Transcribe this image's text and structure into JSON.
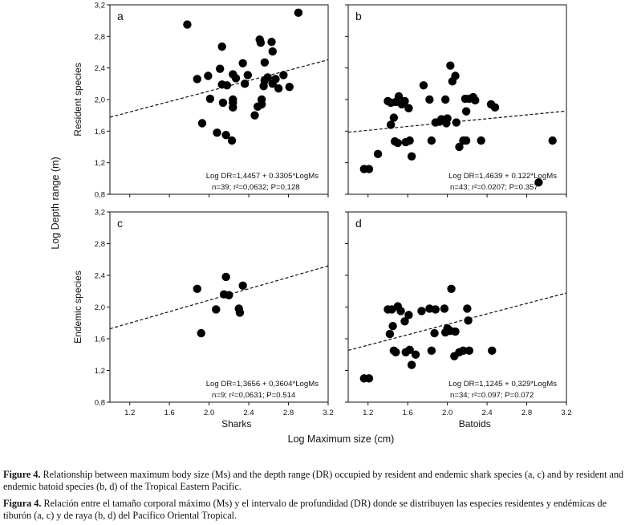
{
  "figure": {
    "y_axis_title": "Log Depth range (m)",
    "x_axis_title": "Log Maximum size (cm)",
    "row_labels": [
      "Resident species",
      "Endemic species"
    ],
    "column_labels": [
      "Sharks",
      "Batoids"
    ]
  },
  "caption_en": {
    "bold": "Figure 4.",
    "text": " Relationship between maximum body size (Ms) and the depth range (DR) occupied by resident and endemic shark species (a, c) and by resident and endemic batoid species (b, d) of the Tropical Eastern Pacific."
  },
  "caption_es": {
    "bold": "Figura 4.",
    "text": " Relación entre el tamaño corporal máximo (Ms) y el intervalo de profundidad (DR) donde se distribuyen las especies residentes y endémicas de tiburón (a, c) y de raya (b, d) del Pacífico Oriental Tropical."
  },
  "chart_data": [
    {
      "type": "scatter",
      "panel": "a",
      "ylabel": "Resident species",
      "xlim": [
        1.0,
        3.2
      ],
      "ylim": [
        0.8,
        3.2
      ],
      "xticks": [
        "1.2",
        "1.6",
        "2.0",
        "2.4",
        "2.8",
        "3.2"
      ],
      "yticks": [
        "0,8",
        "1,2",
        "1,6",
        "2,0",
        "2,4",
        "2,8",
        "3,2"
      ],
      "show_xticks": false,
      "show_yticks": true,
      "regression": {
        "intercept": 1.4457,
        "slope": 0.3305
      },
      "equation": "Log DR=1,4457 + 0.3305*LogMs",
      "stats": "n=39; r²=0,0632; P=0,128",
      "points": [
        [
          1.78,
          2.95
        ],
        [
          1.88,
          2.26
        ],
        [
          1.93,
          1.7
        ],
        [
          1.99,
          2.3
        ],
        [
          2.01,
          2.01
        ],
        [
          2.08,
          1.58
        ],
        [
          2.11,
          2.39
        ],
        [
          2.13,
          2.19
        ],
        [
          2.14,
          1.96
        ],
        [
          2.17,
          1.55
        ],
        [
          2.13,
          2.67
        ],
        [
          2.18,
          2.18
        ],
        [
          2.23,
          1.48
        ],
        [
          2.24,
          2.32
        ],
        [
          2.24,
          2.0
        ],
        [
          2.24,
          1.96
        ],
        [
          2.24,
          1.9
        ],
        [
          2.27,
          2.27
        ],
        [
          2.34,
          2.46
        ],
        [
          2.36,
          2.2
        ],
        [
          2.39,
          2.31
        ],
        [
          2.46,
          1.8
        ],
        [
          2.49,
          1.91
        ],
        [
          2.53,
          2.0
        ],
        [
          2.55,
          2.17
        ],
        [
          2.56,
          2.47
        ],
        [
          2.56,
          2.24
        ],
        [
          2.59,
          2.28
        ],
        [
          2.64,
          2.2
        ],
        [
          2.64,
          2.61
        ],
        [
          2.67,
          2.26
        ],
        [
          2.7,
          2.14
        ],
        [
          2.75,
          2.31
        ],
        [
          2.81,
          2.16
        ],
        [
          2.9,
          3.1
        ],
        [
          2.51,
          2.76
        ],
        [
          2.52,
          2.72
        ],
        [
          2.63,
          2.73
        ],
        [
          2.53,
          1.94
        ]
      ]
    },
    {
      "type": "scatter",
      "panel": "b",
      "xlim": [
        1.0,
        3.2
      ],
      "ylim": [
        0.8,
        3.2
      ],
      "show_xticks": false,
      "show_yticks": false,
      "regression": {
        "intercept": 1.4639,
        "slope": 0.122
      },
      "equation": "Log DR=1,4639 + 0.122*LogMs",
      "stats": "n=43; r²=0.0207; P=0.357",
      "points": [
        [
          1.16,
          1.12
        ],
        [
          1.21,
          1.12
        ],
        [
          1.3,
          1.31
        ],
        [
          1.4,
          1.98
        ],
        [
          1.43,
          1.68
        ],
        [
          1.43,
          1.96
        ],
        [
          1.46,
          1.77
        ],
        [
          1.47,
          1.47
        ],
        [
          1.5,
          1.45
        ],
        [
          1.51,
          2.04
        ],
        [
          1.54,
          1.94
        ],
        [
          1.57,
          1.98
        ],
        [
          1.58,
          1.46
        ],
        [
          1.61,
          1.89
        ],
        [
          1.62,
          1.48
        ],
        [
          1.64,
          1.28
        ],
        [
          1.76,
          2.18
        ],
        [
          1.82,
          2.0
        ],
        [
          1.84,
          1.48
        ],
        [
          1.88,
          1.71
        ],
        [
          1.92,
          1.72
        ],
        [
          1.94,
          1.75
        ],
        [
          1.98,
          2.0
        ],
        [
          2.0,
          1.76
        ],
        [
          2.03,
          2.43
        ],
        [
          2.05,
          2.23
        ],
        [
          2.08,
          2.3
        ],
        [
          2.09,
          1.71
        ],
        [
          2.12,
          1.4
        ],
        [
          2.16,
          1.48
        ],
        [
          2.18,
          2.01
        ],
        [
          2.19,
          1.85
        ],
        [
          2.19,
          1.48
        ],
        [
          2.22,
          2.01
        ],
        [
          2.26,
          2.03
        ],
        [
          2.28,
          1.99
        ],
        [
          2.34,
          1.48
        ],
        [
          2.44,
          1.94
        ],
        [
          2.48,
          1.9
        ],
        [
          2.92,
          0.95
        ],
        [
          3.06,
          1.48
        ],
        [
          1.48,
          1.97
        ],
        [
          1.99,
          1.7
        ]
      ]
    },
    {
      "type": "scatter",
      "panel": "c",
      "ylabel": "Endemic species",
      "xlim": [
        1.0,
        3.2
      ],
      "ylim": [
        0.8,
        3.2
      ],
      "xticks": [
        "1.2",
        "1.6",
        "2.0",
        "2.4",
        "2.8",
        "3.2"
      ],
      "yticks": [
        "0,8",
        "1,2",
        "1,6",
        "2,0",
        "2,4",
        "2,8",
        "3,2"
      ],
      "show_xticks": true,
      "show_yticks": true,
      "regression": {
        "intercept": 1.3656,
        "slope": 0.3604
      },
      "equation": "Log DR=1,3656 + 0,3604*LogMs",
      "stats": "n=9; r²=0,0631; P=0.514",
      "points": [
        [
          1.88,
          2.23
        ],
        [
          1.92,
          1.67
        ],
        [
          2.07,
          1.97
        ],
        [
          2.15,
          2.16
        ],
        [
          2.17,
          2.38
        ],
        [
          2.2,
          2.15
        ],
        [
          2.3,
          1.98
        ],
        [
          2.31,
          1.93
        ],
        [
          2.34,
          2.27
        ]
      ]
    },
    {
      "type": "scatter",
      "panel": "d",
      "xlim": [
        1.0,
        3.2
      ],
      "ylim": [
        0.8,
        3.2
      ],
      "xticks": [
        "1.2",
        "1.6",
        "2.0",
        "2.4",
        "2.8",
        "3.2"
      ],
      "show_xticks": true,
      "show_yticks": false,
      "regression": {
        "intercept": 1.1245,
        "slope": 0.329
      },
      "equation": "Log DR=1,1245 + 0,329*LogMs",
      "stats": "n=34; r²=0.097; P=0.072",
      "points": [
        [
          1.16,
          1.1
        ],
        [
          1.21,
          1.1
        ],
        [
          1.4,
          1.97
        ],
        [
          1.42,
          1.66
        ],
        [
          1.44,
          1.97
        ],
        [
          1.45,
          1.76
        ],
        [
          1.46,
          1.45
        ],
        [
          1.48,
          1.43
        ],
        [
          1.5,
          2.01
        ],
        [
          1.53,
          1.95
        ],
        [
          1.57,
          1.82
        ],
        [
          1.58,
          1.43
        ],
        [
          1.61,
          1.9
        ],
        [
          1.62,
          1.46
        ],
        [
          1.64,
          1.27
        ],
        [
          1.74,
          1.95
        ],
        [
          1.82,
          1.98
        ],
        [
          1.84,
          1.45
        ],
        [
          1.87,
          1.67
        ],
        [
          1.97,
          1.98
        ],
        [
          1.98,
          1.68
        ],
        [
          2.0,
          1.73
        ],
        [
          2.03,
          1.7
        ],
        [
          2.04,
          2.23
        ],
        [
          2.07,
          1.38
        ],
        [
          2.08,
          1.69
        ],
        [
          2.16,
          1.45
        ],
        [
          2.2,
          1.98
        ],
        [
          2.21,
          1.83
        ],
        [
          2.22,
          1.45
        ],
        [
          2.45,
          1.45
        ],
        [
          1.68,
          1.4
        ],
        [
          1.88,
          1.97
        ],
        [
          2.12,
          1.43
        ]
      ]
    }
  ]
}
